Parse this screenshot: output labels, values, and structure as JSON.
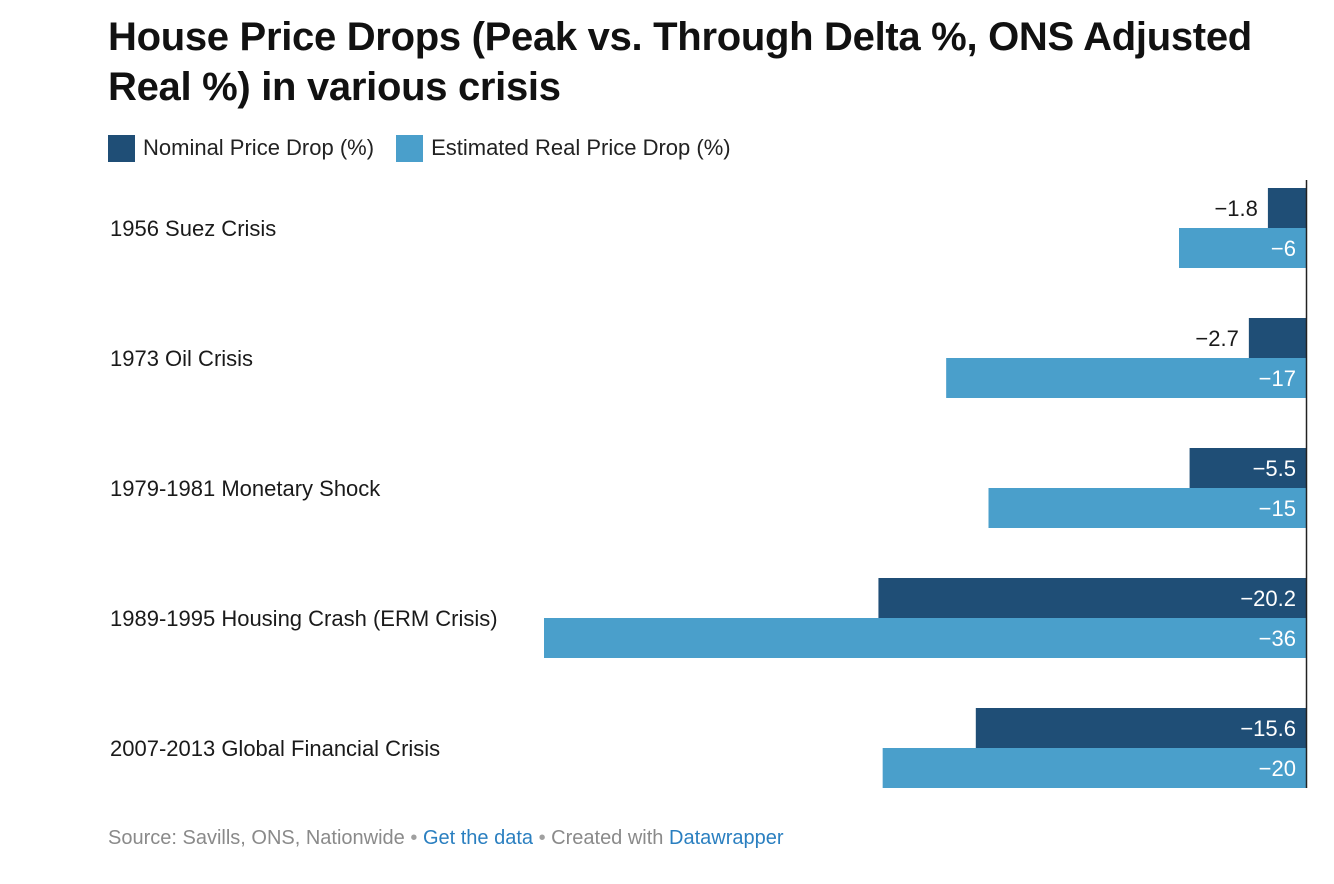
{
  "chart_data": {
    "type": "bar",
    "orientation": "horizontal",
    "title": "House Price Drops (Peak vs. Through Delta %, ONS Adjusted Real %) in various crisis",
    "categories": [
      "1956 Suez Crisis",
      "1973 Oil Crisis",
      "1979-1981 Monetary Shock",
      "1989-1995 Housing Crash (ERM Crisis)",
      "2007-2013 Global Financial Crisis"
    ],
    "series": [
      {
        "name": "Nominal Price Drop (%)",
        "color": "#1f4e76",
        "values": [
          -1.8,
          -2.7,
          -5.5,
          -20.2,
          -15.6
        ],
        "labels": [
          "−1.8",
          "−2.7",
          "−5.5",
          "−20.2",
          "−15.6"
        ]
      },
      {
        "name": "Estimated Real Price Drop (%)",
        "color": "#4a9fcb",
        "values": [
          -6,
          -17,
          -15,
          -36,
          -20
        ],
        "labels": [
          "−6",
          "−17",
          "−15",
          "−36",
          "−20"
        ]
      }
    ],
    "xlim": [
      -36,
      0
    ],
    "grid": false,
    "legend_position": "top-left"
  },
  "footer": {
    "source": "Source: Savills, ONS, Nationwide",
    "sep": "•",
    "get_data": "Get the data",
    "created_with": "Created with",
    "datawrapper": "Datawrapper"
  }
}
